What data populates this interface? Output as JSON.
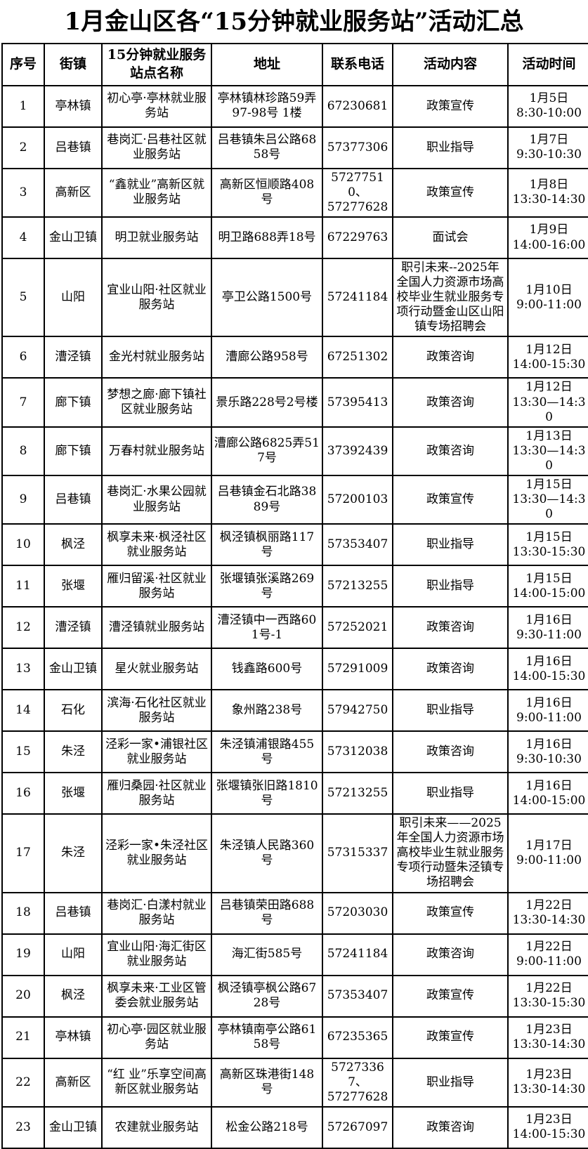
{
  "title": "1月金山区各“15分钟就业服务站”活动汇总",
  "table": {
    "columns": [
      "序号",
      "街镇",
      "15分钟就业服务站点名称",
      "地址",
      "联系电话",
      "活动内容",
      "活动时间"
    ],
    "column_keys": [
      "no",
      "town",
      "station",
      "address",
      "phone",
      "activity",
      "time"
    ],
    "rows": [
      {
        "no": "1",
        "town": "亭林镇",
        "station": "初心亭·亭林就业服务站",
        "address": "亭林镇林珍路59弄97-98号 1楼",
        "phone": "67230681",
        "activity": "政策宣传",
        "time": "1月5日\n8:30-10:00"
      },
      {
        "no": "2",
        "town": "吕巷镇",
        "station": "巷岗汇·吕巷社区就业服务站",
        "address": "吕巷镇朱吕公路6858号",
        "phone": "57377306",
        "activity": "职业指导",
        "time": "1月7日\n9:30-10:30"
      },
      {
        "no": "3",
        "town": "高新区",
        "station": "“鑫就业”高新区就业服务站",
        "address": "高新区恒顺路408号",
        "phone": "57277510、\n57277628",
        "activity": "政策宣传",
        "time": "1月8日\n13:30-14:30"
      },
      {
        "no": "4",
        "town": "金山卫镇",
        "station": "明卫就业服务站",
        "address": "明卫路688弄18号",
        "phone": "67229763",
        "activity": "面试会",
        "time": "1月9日\n14:00-16:00"
      },
      {
        "no": "5",
        "town": "山阳",
        "station": "宜业山阳·社区就业服务站",
        "address": "亭卫公路1500号",
        "phone": "57241184",
        "activity": "职引未来--2025年全国人力资源市场高校毕业生就业服务专项行动暨金山区山阳镇专场招聘会",
        "time": "1月10日\n9:00-11:00"
      },
      {
        "no": "6",
        "town": "漕泾镇",
        "station": "金光村就业服务站",
        "address": "漕廊公路958号",
        "phone": "67251302",
        "activity": "政策咨询",
        "time": "1月12日\n14:00-15:30"
      },
      {
        "no": "7",
        "town": "廊下镇",
        "station": "梦想之廊·廊下镇社区就业服务站",
        "address": "景乐路228号2号楼",
        "phone": "57395413",
        "activity": "政策咨询",
        "time": "1月12日\n13:30—14:30"
      },
      {
        "no": "8",
        "town": "廊下镇",
        "station": "万春村就业服务站",
        "address": "漕廊公路6825弄517号",
        "phone": "37392439",
        "activity": "政策咨询",
        "time": "1月13日\n13:30—14:30"
      },
      {
        "no": "9",
        "town": "吕巷镇",
        "station": "巷岗汇·水果公园就业服务站",
        "address": "吕巷镇金石北路3889号",
        "phone": "57200103",
        "activity": "政策宣传",
        "time": "1月15日\n13:30—14:30"
      },
      {
        "no": "10",
        "town": "枫泾",
        "station": "枫享未来·枫泾社区就业服务站",
        "address": "枫泾镇枫丽路117号",
        "phone": "57353407",
        "activity": "职业指导",
        "time": "1月15日\n13:30-15:30"
      },
      {
        "no": "11",
        "town": "张堰",
        "station": "雁归留溪·社区就业服务站",
        "address": "张堰镇张溪路269号",
        "phone": "57213255",
        "activity": "职业指导",
        "time": "1月15日\n14:00-15:00"
      },
      {
        "no": "12",
        "town": "漕泾镇",
        "station": "漕泾镇就业服务站",
        "address": "漕泾镇中一西路601号-1",
        "phone": "57252021",
        "activity": "政策咨询",
        "time": "1月16日\n9:30-11:00"
      },
      {
        "no": "13",
        "town": "金山卫镇",
        "station": "星火就业服务站",
        "address": "钱鑫路600号",
        "phone": "57291009",
        "activity": "政策咨询",
        "time": "1月16日\n14:00-15:30"
      },
      {
        "no": "14",
        "town": "石化",
        "station": "滨海·石化社区就业服务站",
        "address": "象州路238号",
        "phone": "57942750",
        "activity": "职业指导",
        "time": "1月16日\n9:00-11:00"
      },
      {
        "no": "15",
        "town": "朱泾",
        "station": "泾彩一家•浦银社区就业服务站",
        "address": "朱泾镇浦银路455号",
        "phone": "57312038",
        "activity": "政策咨询",
        "time": "1月16日\n9:30-10:30"
      },
      {
        "no": "16",
        "town": "张堰",
        "station": "雁归桑园·社区就业服务站",
        "address": "张堰镇张旧路1810号",
        "phone": "57213255",
        "activity": "职业指导",
        "time": "1月16日\n14:00-15:00"
      },
      {
        "no": "17",
        "town": "朱泾",
        "station": "泾彩一家•朱泾社区就业服务站",
        "address": "朱泾镇人民路360号",
        "phone": "57315337",
        "activity": "职引未来——2025年全国人力资源市场高校毕业生就业服务专项行动暨朱泾镇专场招聘会",
        "time": "1月17日\n9:00-11:00"
      },
      {
        "no": "18",
        "town": "吕巷镇",
        "station": "巷岗汇·白漾村就业服务站",
        "address": "吕巷镇荣田路688号",
        "phone": "57203030",
        "activity": "政策宣传",
        "time": "1月22日\n13:30-14:30"
      },
      {
        "no": "19",
        "town": "山阳",
        "station": "宜业山阳·海汇街区就业服务站",
        "address": "海汇街585号",
        "phone": "57241184",
        "activity": "政策咨询",
        "time": "1月22日\n9:00-11:00"
      },
      {
        "no": "20",
        "town": "枫泾",
        "station": "枫享未来·工业区管委会就业服务站",
        "address": "枫泾镇亭枫公路6728号",
        "phone": "57353407",
        "activity": "政策宣传",
        "time": "1月22日\n13:30-15:30"
      },
      {
        "no": "21",
        "town": "亭林镇",
        "station": "初心亭·园区就业服务站",
        "address": "亭林镇南亭公路6158号",
        "phone": "67235365",
        "activity": "政策宣传",
        "time": "1月23日\n13:30-14:30"
      },
      {
        "no": "22",
        "town": "高新区",
        "station": "“红 业”乐享空间高新区就业服务站",
        "address": "高新区珠港街148号",
        "phone": "57273367、\n57277628",
        "activity": "职业指导",
        "time": "1月23日\n13:30-14:30"
      },
      {
        "no": "23",
        "town": "金山卫镇",
        "station": "农建就业服务站",
        "address": "松金公路218号",
        "phone": "57267097",
        "activity": "政策咨询",
        "time": "1月23日\n14:00-15:30"
      }
    ]
  }
}
